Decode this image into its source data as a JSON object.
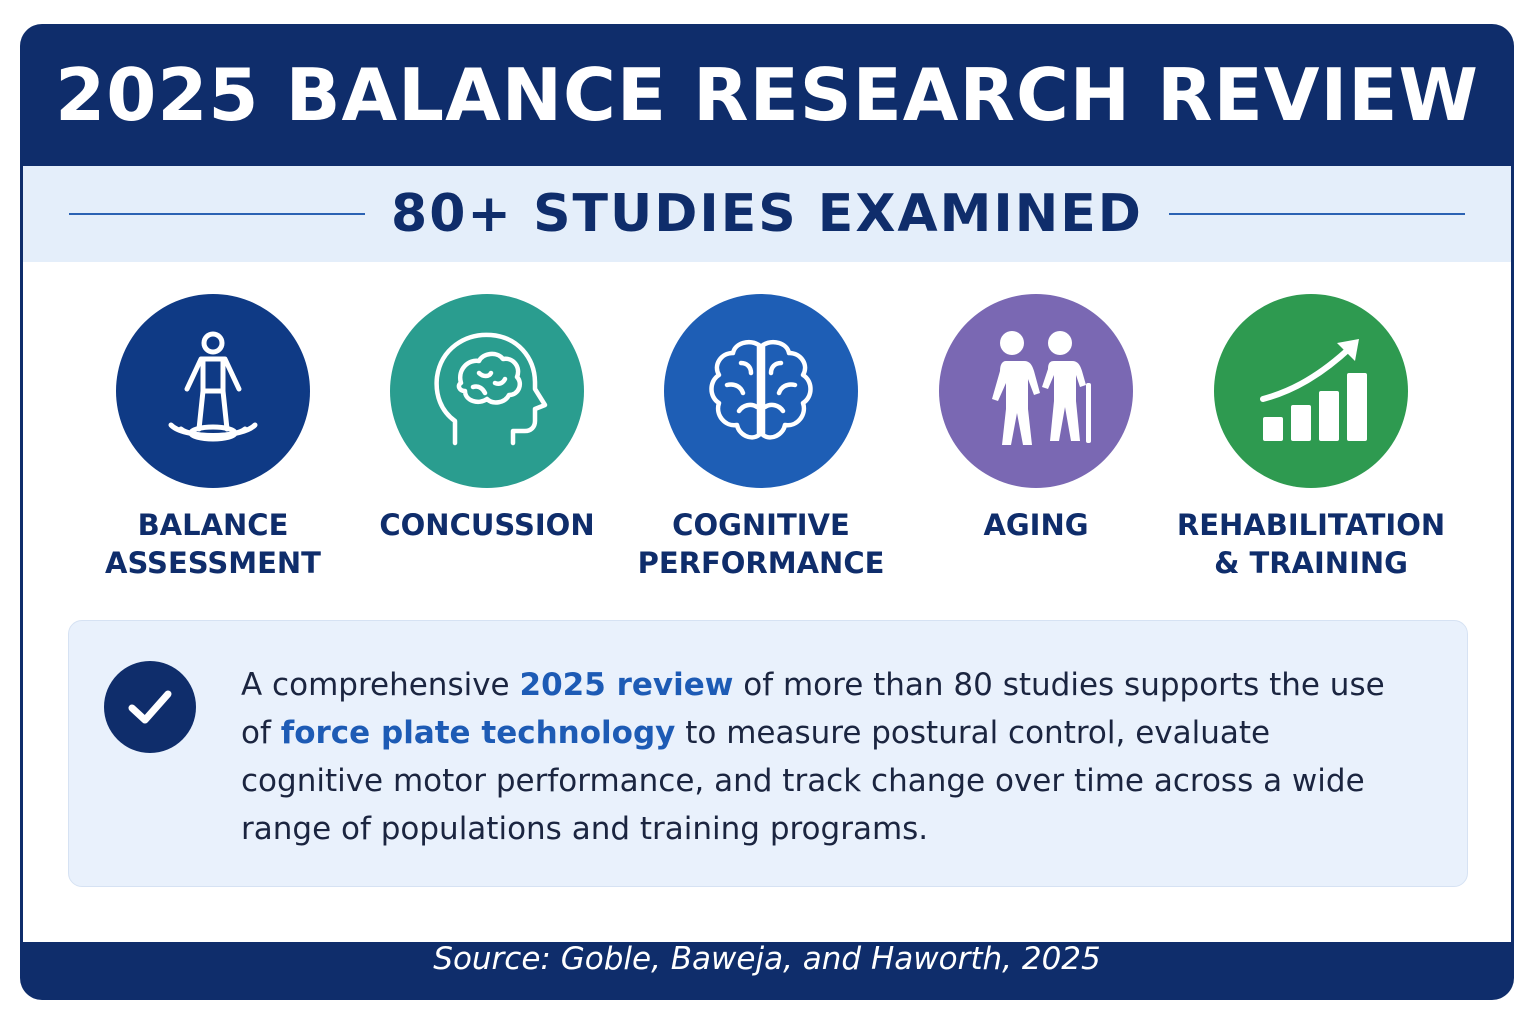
{
  "header": {
    "title": "2025 BALANCE RESEARCH REVIEW"
  },
  "band": {
    "subtitle": "80+ STUDIES EXAMINED"
  },
  "topics": [
    {
      "label": "BALANCE\nASSESSMENT",
      "icon": "standing-person-balance-icon",
      "color": "#0f3a85"
    },
    {
      "label": "CONCUSSION",
      "icon": "head-brain-icon",
      "color": "#2a9d8f"
    },
    {
      "label": "COGNITIVE\nPERFORMANCE",
      "icon": "brain-icon",
      "color": "#1e5eb5"
    },
    {
      "label": "AGING",
      "icon": "elderly-people-icon",
      "color": "#7a68b3"
    },
    {
      "label": "REHABILITATION\n& TRAINING",
      "icon": "growth-chart-icon",
      "color": "#2e9a50"
    }
  ],
  "summary": {
    "icon": "checkmark-icon",
    "text_1": "A comprehensive ",
    "highlight_1": "2025 review",
    "text_2": " of more than 80 studies supports the use of ",
    "highlight_2": "force plate technology",
    "text_3": " to measure postural control, evaluate cognitive motor performance, and track change over time across a wide range of populations and training programs."
  },
  "footer": {
    "source": "Source: Goble, Baweja, and Haworth, 2025"
  }
}
